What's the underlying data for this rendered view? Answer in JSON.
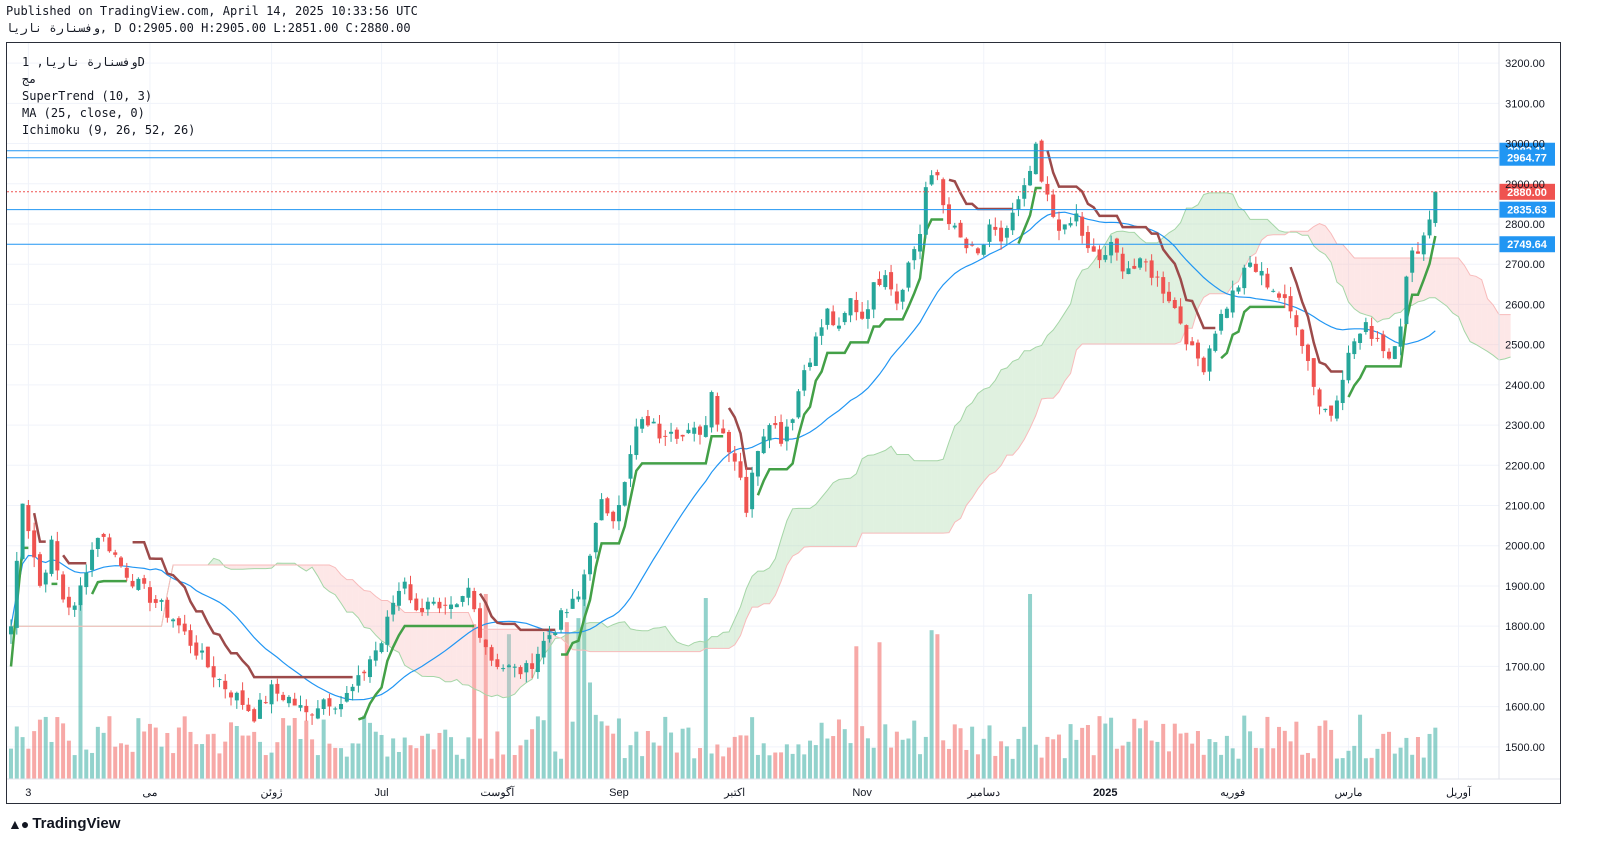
{
  "header": {
    "published": "Published on TradingView.com, April 14, 2025 10:33:56 UTC",
    "ohlc": "وفسنارة ناريا, D O:2905.00 H:2905.00 L:2851.00 C:2880.00"
  },
  "legend": {
    "line1": "وفسنارة ناريا, 1D",
    "line2": "مج",
    "line3": "SuperTrend (10, 3)",
    "line4": "MA (25, close, 0)",
    "line5": "Ichimoku (9, 26, 52, 26)"
  },
  "footer": {
    "brand": "TradingView",
    "logo_icon": "tradingview-logo-icon"
  },
  "colors": {
    "up": "#26a69a",
    "down": "#ef5350",
    "ma": "#2196f3",
    "supertrend_up": "#43a047",
    "supertrend_down": "#9c4a4a",
    "cloud_bull": "#a5d6a7",
    "cloud_bear": "#f8bbbb",
    "hline": "#2196f3"
  },
  "chart_data": {
    "type": "candlestick",
    "y_axis": {
      "range": [
        1420,
        3250
      ],
      "ticks": [
        1500,
        1600,
        1700,
        1800,
        1900,
        2000,
        2100,
        2200,
        2300,
        2400,
        2500,
        2600,
        2700,
        2800,
        2900,
        3000,
        3100,
        3200
      ]
    },
    "x_axis_labels": [
      {
        "label": "3",
        "index": 3
      },
      {
        "label": "می",
        "index": 24
      },
      {
        "label": "ژوئن",
        "index": 45
      },
      {
        "label": "Jul",
        "index": 64
      },
      {
        "label": "آگوست",
        "index": 84
      },
      {
        "label": "Sep",
        "index": 105
      },
      {
        "label": "اکتبر",
        "index": 125
      },
      {
        "label": "Nov",
        "index": 147
      },
      {
        "label": "دسامبر",
        "index": 168
      },
      {
        "label": "2025",
        "index": 189
      },
      {
        "label": "فوریه",
        "index": 211
      },
      {
        "label": "مارس",
        "index": 231
      },
      {
        "label": "آوریل",
        "index": 250
      }
    ],
    "price_levels": [
      {
        "label": "2982.11",
        "value": 2982.11,
        "color": "#2196f3"
      },
      {
        "label": "2964.77",
        "value": 2964.77,
        "color": "#2196f3"
      },
      {
        "label": "2880.00",
        "value": 2880.0,
        "color": "#ef5350",
        "dotted": true
      },
      {
        "label": "2835.63",
        "value": 2835.63,
        "color": "#2196f3"
      },
      {
        "label": "2749.64",
        "value": 2749.64,
        "color": "#2196f3"
      }
    ],
    "close_anchors": [
      [
        0,
        1800
      ],
      [
        2,
        2120
      ],
      [
        5,
        1900
      ],
      [
        7,
        2000
      ],
      [
        9,
        1870
      ],
      [
        11,
        1840
      ],
      [
        13,
        1950
      ],
      [
        15,
        2030
      ],
      [
        17,
        2000
      ],
      [
        19,
        1950
      ],
      [
        22,
        1900
      ],
      [
        25,
        1860
      ],
      [
        28,
        1820
      ],
      [
        31,
        1760
      ],
      [
        34,
        1700
      ],
      [
        37,
        1650
      ],
      [
        40,
        1610
      ],
      [
        42,
        1580
      ],
      [
        45,
        1640
      ],
      [
        48,
        1620
      ],
      [
        51,
        1580
      ],
      [
        54,
        1620
      ],
      [
        57,
        1610
      ],
      [
        60,
        1660
      ],
      [
        62,
        1720
      ],
      [
        64,
        1760
      ],
      [
        66,
        1860
      ],
      [
        68,
        1920
      ],
      [
        70,
        1830
      ],
      [
        72,
        1870
      ],
      [
        74,
        1830
      ],
      [
        77,
        1840
      ],
      [
        79,
        1890
      ],
      [
        81,
        1790
      ],
      [
        83,
        1720
      ],
      [
        85,
        1700
      ],
      [
        87,
        1690
      ],
      [
        89,
        1690
      ],
      [
        92,
        1760
      ],
      [
        95,
        1820
      ],
      [
        98,
        1870
      ],
      [
        100,
        1990
      ],
      [
        102,
        2100
      ],
      [
        104,
        2080
      ],
      [
        106,
        2150
      ],
      [
        108,
        2290
      ],
      [
        110,
        2310
      ],
      [
        112,
        2280
      ],
      [
        114,
        2300
      ],
      [
        116,
        2270
      ],
      [
        118,
        2280
      ],
      [
        120,
        2300
      ],
      [
        121,
        2400
      ],
      [
        122,
        2310
      ],
      [
        124,
        2250
      ],
      [
        126,
        2180
      ],
      [
        127,
        2090
      ],
      [
        129,
        2250
      ],
      [
        131,
        2320
      ],
      [
        133,
        2270
      ],
      [
        135,
        2330
      ],
      [
        137,
        2440
      ],
      [
        139,
        2510
      ],
      [
        141,
        2580
      ],
      [
        143,
        2530
      ],
      [
        145,
        2610
      ],
      [
        147,
        2570
      ],
      [
        149,
        2640
      ],
      [
        151,
        2690
      ],
      [
        153,
        2610
      ],
      [
        155,
        2700
      ],
      [
        157,
        2780
      ],
      [
        158,
        2890
      ],
      [
        160,
        2920
      ],
      [
        161,
        2850
      ],
      [
        163,
        2780
      ],
      [
        165,
        2740
      ],
      [
        167,
        2720
      ],
      [
        169,
        2780
      ],
      [
        171,
        2760
      ],
      [
        173,
        2820
      ],
      [
        175,
        2880
      ],
      [
        177,
        2980
      ],
      [
        178,
        2900
      ],
      [
        180,
        2820
      ],
      [
        182,
        2780
      ],
      [
        184,
        2820
      ],
      [
        186,
        2730
      ],
      [
        188,
        2710
      ],
      [
        190,
        2740
      ],
      [
        192,
        2700
      ],
      [
        194,
        2690
      ],
      [
        196,
        2700
      ],
      [
        198,
        2660
      ],
      [
        200,
        2620
      ],
      [
        202,
        2560
      ],
      [
        204,
        2480
      ],
      [
        206,
        2450
      ],
      [
        208,
        2540
      ],
      [
        210,
        2600
      ],
      [
        212,
        2650
      ],
      [
        214,
        2700
      ],
      [
        216,
        2670
      ],
      [
        218,
        2640
      ],
      [
        220,
        2600
      ],
      [
        222,
        2560
      ],
      [
        224,
        2460
      ],
      [
        226,
        2350
      ],
      [
        228,
        2330
      ],
      [
        230,
        2430
      ],
      [
        232,
        2510
      ],
      [
        234,
        2540
      ],
      [
        236,
        2520
      ],
      [
        238,
        2470
      ],
      [
        240,
        2560
      ],
      [
        241,
        2660
      ],
      [
        242,
        2720
      ],
      [
        244,
        2770
      ],
      [
        245,
        2820
      ],
      [
        246,
        2880
      ]
    ],
    "volume_spikes": [
      [
        12,
        1890
      ],
      [
        80,
        1805
      ],
      [
        82,
        1880
      ],
      [
        86,
        1780
      ],
      [
        93,
        1790
      ],
      [
        96,
        1810
      ],
      [
        98,
        1820
      ],
      [
        99,
        1890
      ],
      [
        100,
        1660
      ],
      [
        120,
        1870
      ],
      [
        146,
        1750
      ],
      [
        150,
        1760
      ],
      [
        159,
        1790
      ],
      [
        160,
        1780
      ],
      [
        176,
        1880
      ]
    ]
  }
}
